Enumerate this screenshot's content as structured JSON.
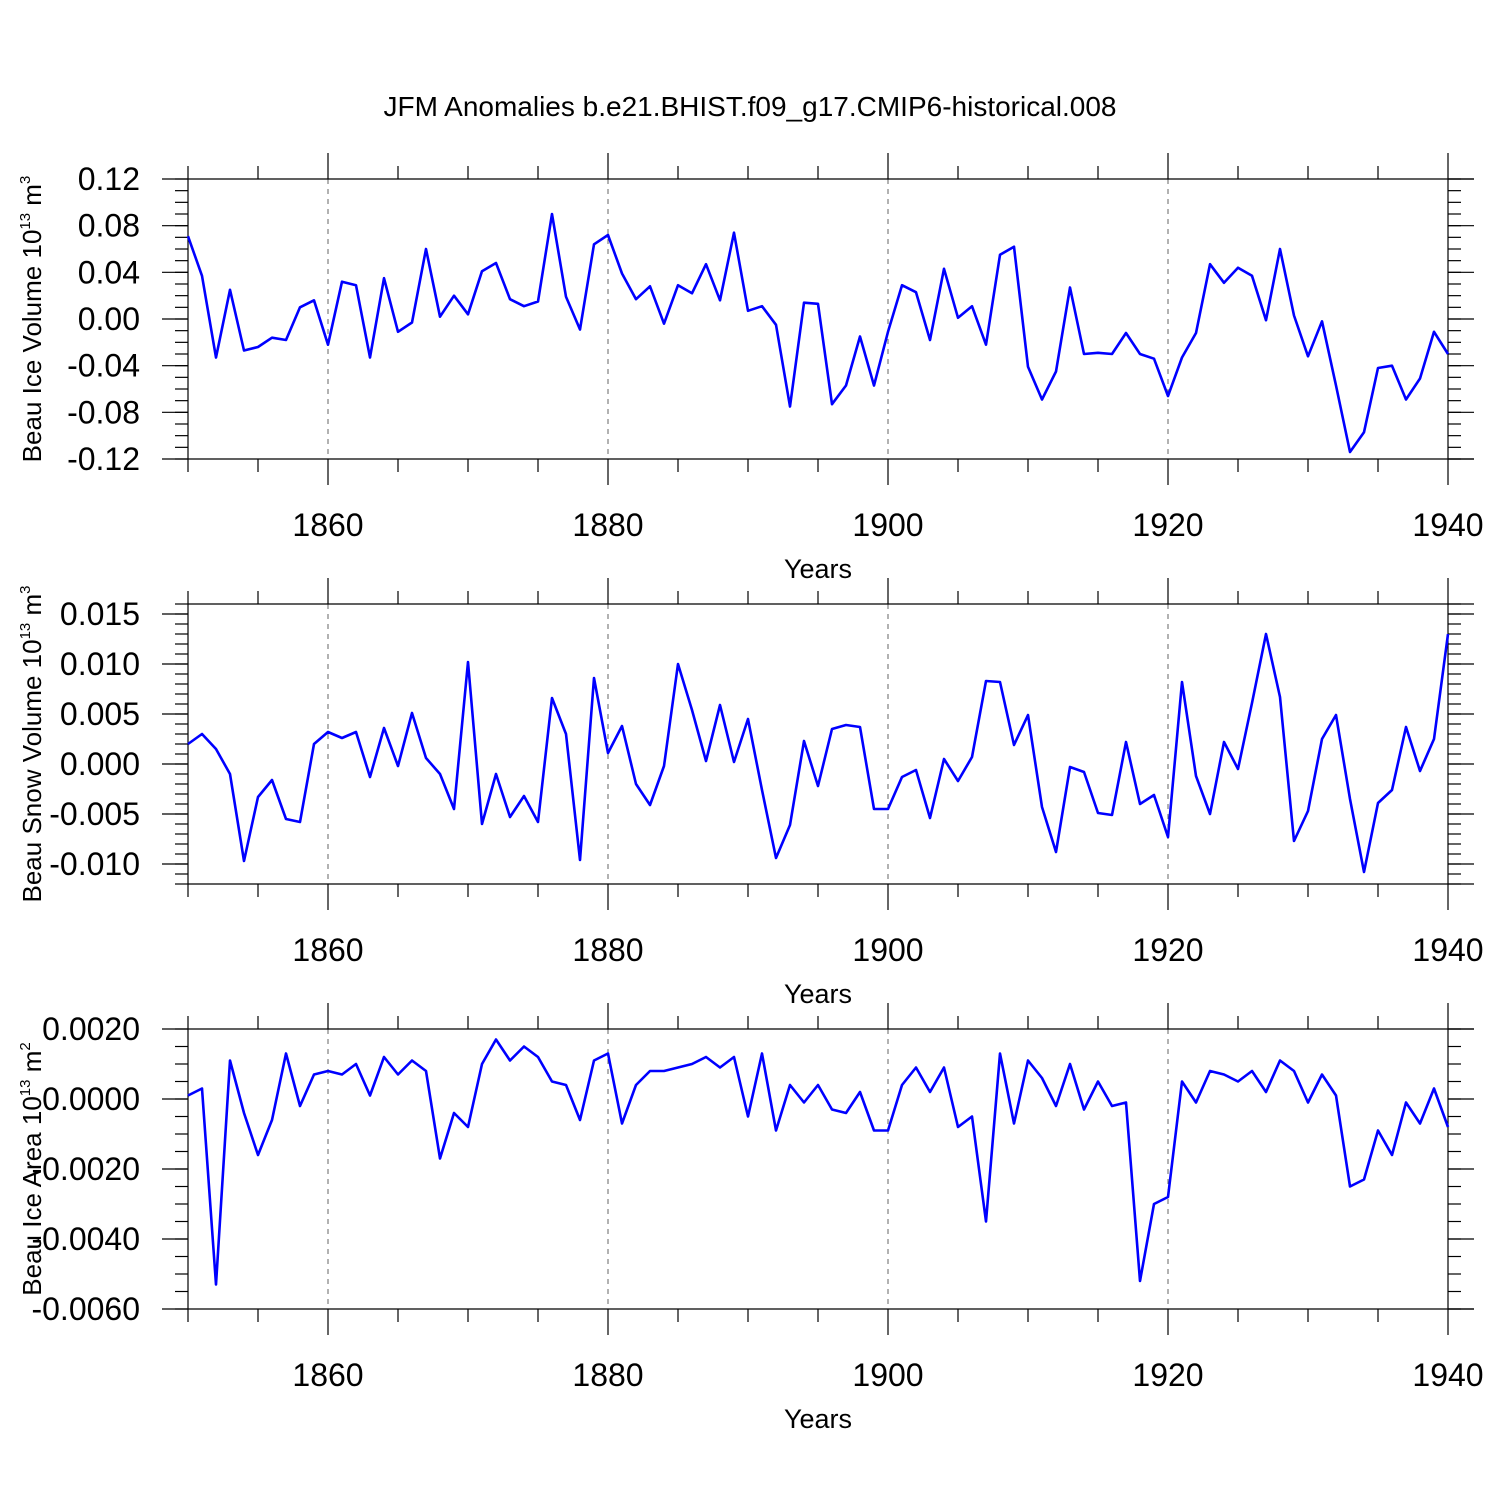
{
  "title": "JFM Anomalies b.e21.BHIST.f09_g17.CMIP6-historical.008",
  "chart_data": [
    {
      "type": "line",
      "ylabel": {
        "prefix": "Beau Ice Volume 10",
        "sup": "13",
        "suffix": " m",
        "sup2": "3"
      },
      "xlabel": "Years",
      "xlim": [
        1850,
        1940
      ],
      "ylim": [
        -0.12,
        0.12
      ],
      "ymajor": [
        -0.12,
        -0.08,
        -0.04,
        0.0,
        0.04,
        0.08,
        0.12
      ],
      "yminor_step": 0.01,
      "ytick_labels": [
        "-0.12",
        "-0.08",
        "-0.04",
        "0.00",
        "0.04",
        "0.08",
        "0.12"
      ],
      "xticks": [
        1860,
        1880,
        1900,
        1920,
        1940
      ],
      "xtick_labels": [
        "1860",
        "1880",
        "1900",
        "1920",
        "1940"
      ],
      "grid_x": true,
      "series": [
        {
          "name": "Beau Ice Volume",
          "color": "#0000ff",
          "x_start": 1850,
          "values": [
            0.071,
            0.037,
            -0.033,
            0.025,
            -0.027,
            -0.024,
            -0.016,
            -0.018,
            0.01,
            0.016,
            -0.022,
            0.032,
            0.029,
            -0.033,
            0.035,
            -0.011,
            -0.003,
            0.06,
            0.002,
            0.02,
            0.004,
            0.041,
            0.048,
            0.017,
            0.011,
            0.015,
            0.09,
            0.019,
            -0.009,
            0.064,
            0.072,
            0.039,
            0.017,
            0.028,
            -0.004,
            0.029,
            0.022,
            0.047,
            0.016,
            0.074,
            0.007,
            0.011,
            -0.005,
            -0.075,
            0.014,
            0.013,
            -0.073,
            -0.057,
            -0.015,
            -0.057,
            -0.011,
            0.029,
            0.023,
            -0.018,
            0.043,
            0.001,
            0.011,
            -0.022,
            0.055,
            0.062,
            -0.041,
            -0.069,
            -0.045,
            0.027,
            -0.03,
            -0.029,
            -0.03,
            -0.012,
            -0.03,
            -0.034,
            -0.066,
            -0.033,
            -0.012,
            0.047,
            0.031,
            0.044,
            0.037,
            -0.001,
            0.06,
            0.003,
            -0.032,
            -0.002,
            -0.057,
            -0.114,
            -0.097,
            -0.042,
            -0.04,
            -0.069,
            -0.051,
            -0.011,
            -0.03
          ]
        }
      ]
    },
    {
      "type": "line",
      "ylabel": {
        "prefix": "Beau Snow Volume 10",
        "sup": "13",
        "suffix": " m",
        "sup2": "3"
      },
      "xlabel": "Years",
      "xlim": [
        1850,
        1940
      ],
      "ylim": [
        -0.012,
        0.016
      ],
      "ymajor": [
        -0.01,
        -0.005,
        0.0,
        0.005,
        0.01,
        0.015
      ],
      "yminor_step": 0.001,
      "ytick_labels": [
        "-0.010",
        "-0.005",
        "0.000",
        "0.005",
        "0.010",
        "0.015"
      ],
      "xticks": [
        1860,
        1880,
        1900,
        1920,
        1940
      ],
      "xtick_labels": [
        "1860",
        "1880",
        "1900",
        "1920",
        "1940"
      ],
      "grid_x": true,
      "series": [
        {
          "name": "Beau Snow Volume",
          "color": "#0000ff",
          "x_start": 1850,
          "values": [
            0.002,
            0.003,
            0.0015,
            -0.001,
            -0.0097,
            -0.0033,
            -0.0016,
            -0.0055,
            -0.0058,
            0.002,
            0.0032,
            0.0026,
            0.0032,
            -0.0013,
            0.0036,
            -0.0002,
            0.0051,
            0.0006,
            -0.001,
            -0.0045,
            0.0102,
            -0.006,
            -0.001,
            -0.0053,
            -0.0032,
            -0.0058,
            0.0066,
            0.003,
            -0.0096,
            0.0086,
            0.0011,
            0.0038,
            -0.002,
            -0.0041,
            -0.0002,
            0.01,
            0.0054,
            0.0003,
            0.0059,
            0.0002,
            0.0045,
            -0.0026,
            -0.0094,
            -0.0061,
            0.0023,
            -0.0022,
            0.0035,
            0.0039,
            0.0037,
            -0.0045,
            -0.0045,
            -0.0013,
            -0.0006,
            -0.0054,
            0.0005,
            -0.0017,
            0.0007,
            0.0083,
            0.0082,
            0.0019,
            0.0049,
            -0.0043,
            -0.0088,
            -0.0003,
            -0.0008,
            -0.0049,
            -0.0051,
            0.0022,
            -0.004,
            -0.0031,
            -0.0073,
            0.0082,
            -0.0012,
            -0.005,
            0.0022,
            -0.0005,
            0.0061,
            0.013,
            0.0067,
            -0.0077,
            -0.0047,
            0.0025,
            0.0049,
            -0.0035,
            -0.0108,
            -0.0039,
            -0.0026,
            0.0037,
            -0.0007,
            0.0025,
            0.013
          ]
        }
      ]
    },
    {
      "type": "line",
      "ylabel": {
        "prefix": "Beau Ice Area 10",
        "sup": "13",
        "suffix": " m",
        "sup2": "2"
      },
      "xlabel": "Years",
      "xlim": [
        1850,
        1940
      ],
      "ylim": [
        -0.006,
        0.002
      ],
      "ymajor": [
        -0.006,
        -0.004,
        -0.002,
        0.0,
        0.002
      ],
      "yminor_step": 0.0005,
      "ytick_labels": [
        "-0.0060",
        "-0.0040",
        "-0.0020",
        "0.0000",
        "0.0020"
      ],
      "xticks": [
        1860,
        1880,
        1900,
        1920,
        1940
      ],
      "xtick_labels": [
        "1860",
        "1880",
        "1900",
        "1920",
        "1940"
      ],
      "grid_x": true,
      "series": [
        {
          "name": "Beau Ice Area",
          "color": "#0000ff",
          "x_start": 1850,
          "values": [
            0.0001,
            0.0003,
            -0.0053,
            0.0011,
            -0.0004,
            -0.0016,
            -0.0006,
            0.0013,
            -0.0002,
            0.0007,
            0.0008,
            0.0007,
            0.001,
            0.0001,
            0.0012,
            0.0007,
            0.0011,
            0.0008,
            -0.0017,
            -0.0004,
            -0.0008,
            0.001,
            0.0017,
            0.0011,
            0.0015,
            0.0012,
            0.0005,
            0.0004,
            -0.0006,
            0.0011,
            0.0013,
            -0.0007,
            0.0004,
            0.0008,
            0.0008,
            0.0009,
            0.001,
            0.0012,
            0.0009,
            0.0012,
            -0.0005,
            0.0013,
            -0.0009,
            0.0004,
            -0.0001,
            0.0004,
            -0.0003,
            -0.0004,
            0.0002,
            -0.0009,
            -0.0009,
            0.0004,
            0.0009,
            0.0002,
            0.0009,
            -0.0008,
            -0.0005,
            -0.0035,
            0.0013,
            -0.0007,
            0.0011,
            0.0006,
            -0.0002,
            0.001,
            -0.0003,
            0.0005,
            -0.0002,
            -0.0001,
            -0.0052,
            -0.003,
            -0.0028,
            0.0005,
            -0.0001,
            0.0008,
            0.0007,
            0.0005,
            0.0008,
            0.0002,
            0.0011,
            0.0008,
            -0.0001,
            0.0007,
            0.0001,
            -0.0025,
            -0.0023,
            -0.0009,
            -0.0016,
            -0.0001,
            -0.0007,
            0.0003,
            -0.0008
          ]
        }
      ]
    }
  ]
}
